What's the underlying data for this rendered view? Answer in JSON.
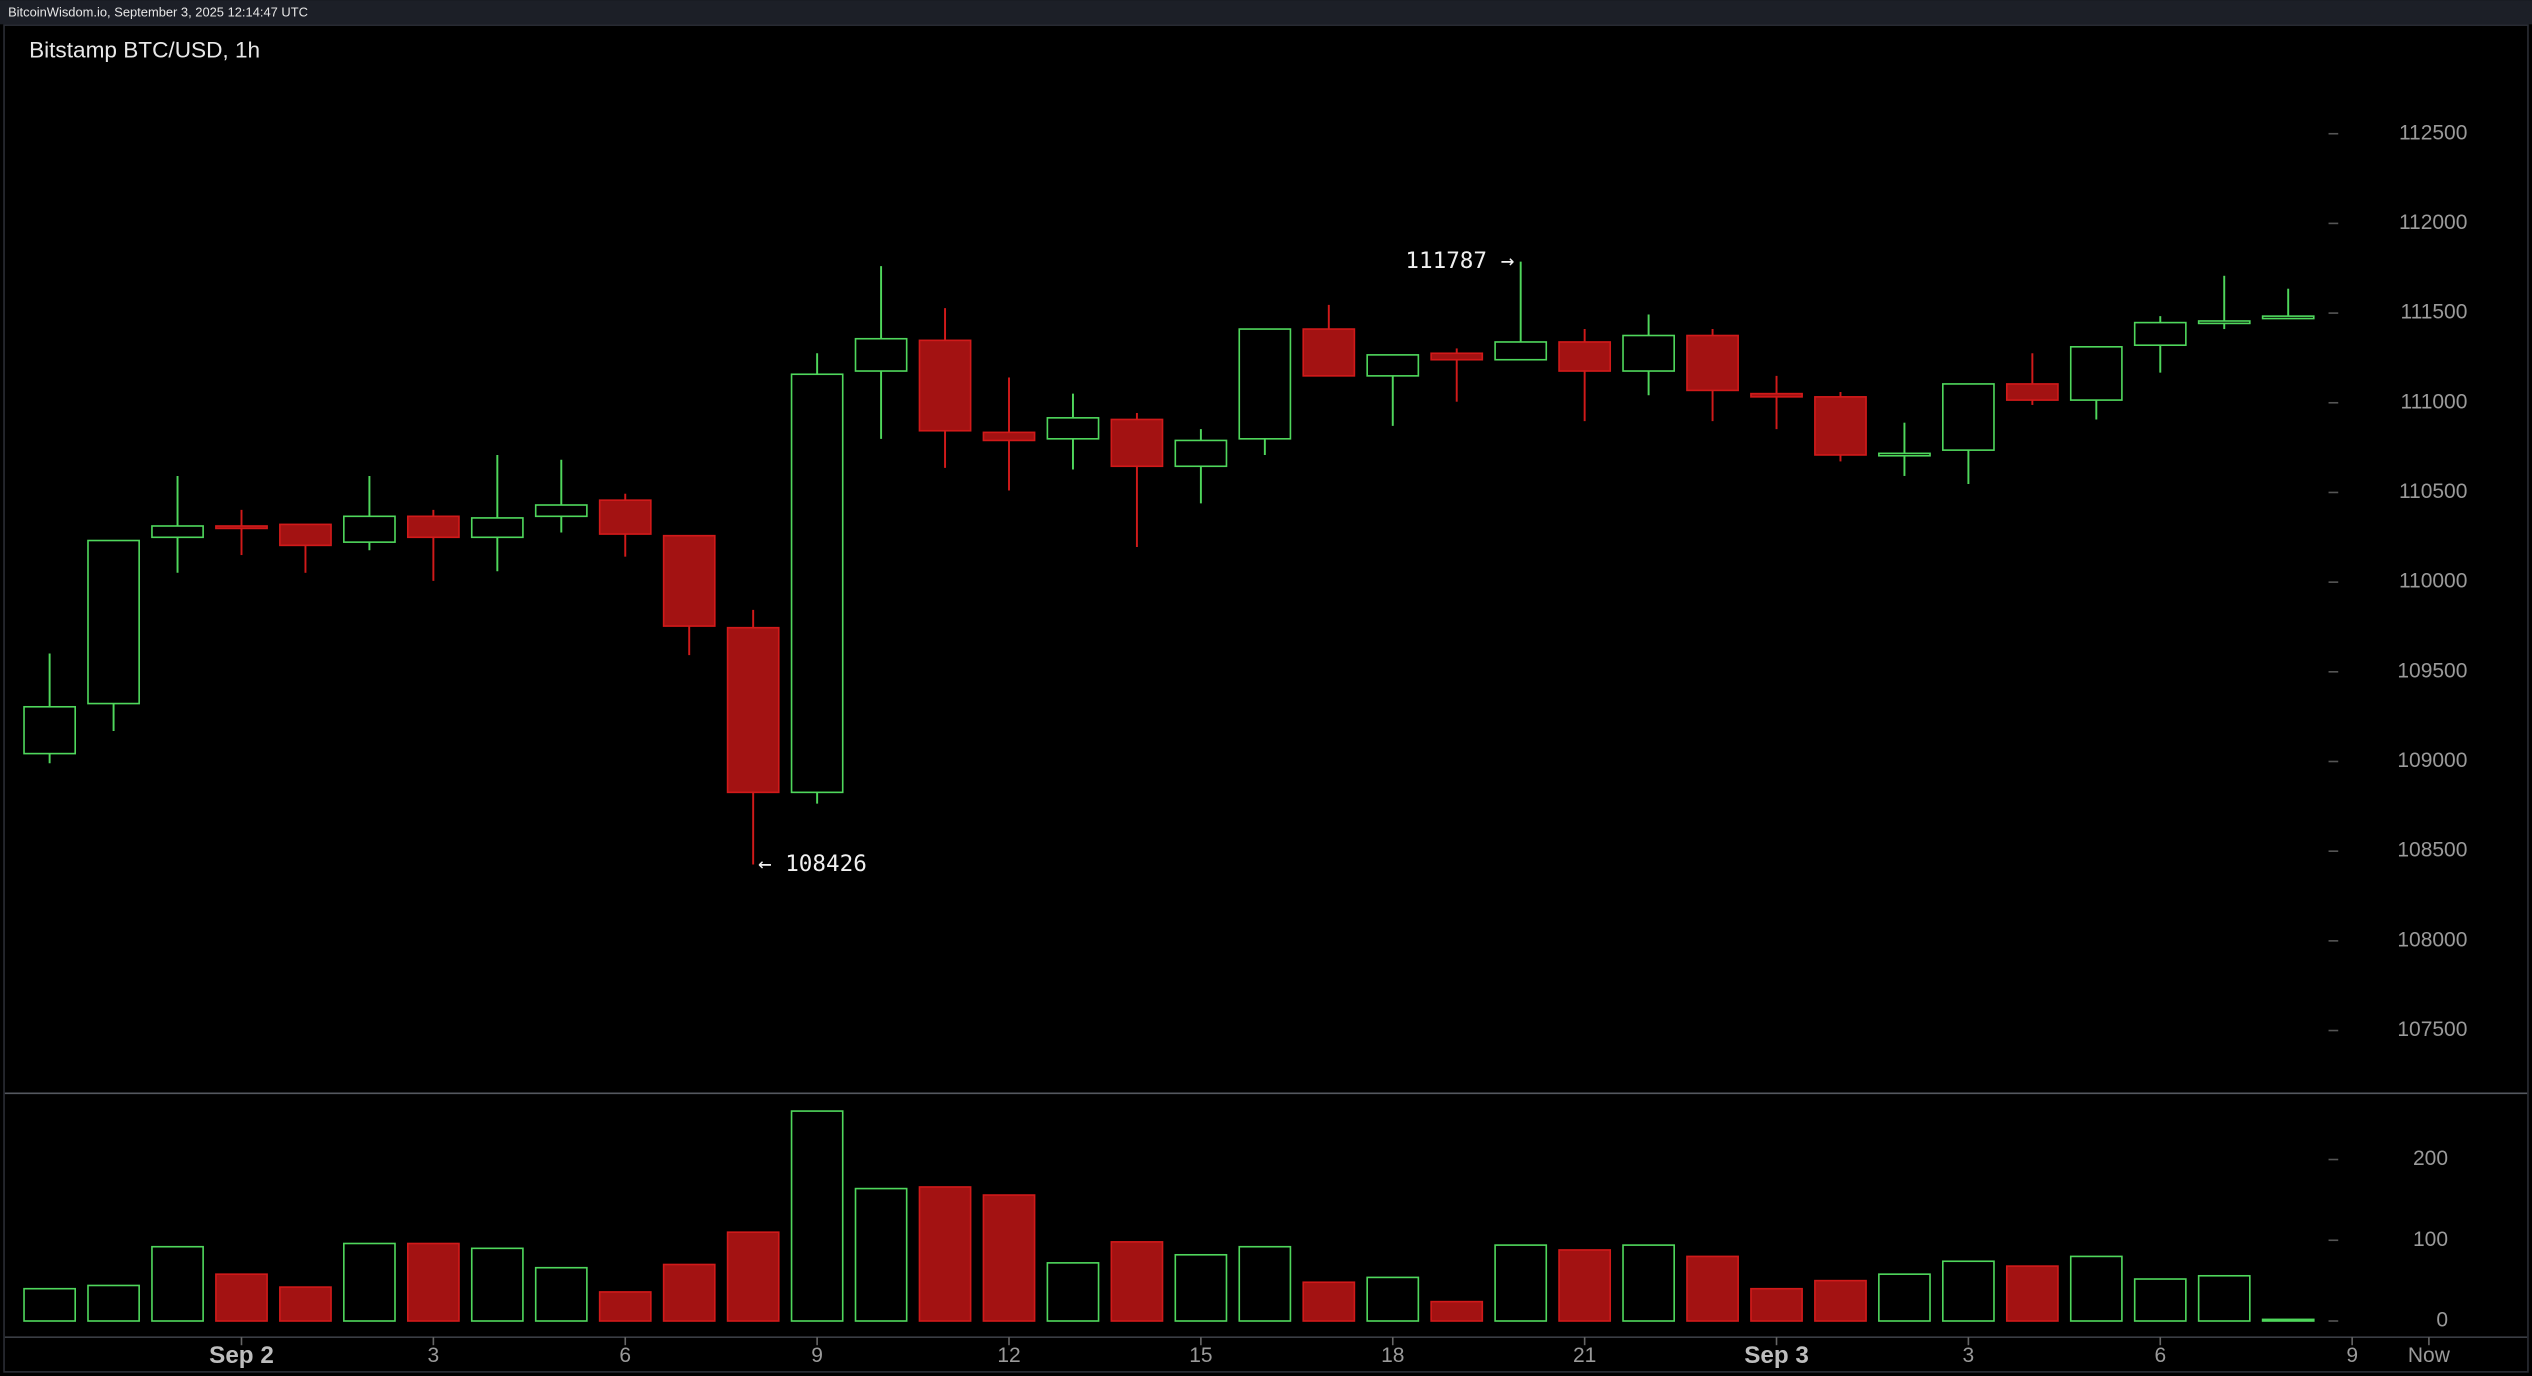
{
  "chart_data": {
    "type": "candlestick",
    "source": "BitcoinWisdom.io, September 3, 2025 12:14:47 UTC",
    "title": "Bitstamp BTC/USD, 1h",
    "open": [
      109044,
      109323,
      110250,
      110313,
      110322,
      110223,
      110367,
      110250,
      110367,
      110457,
      110259,
      109746,
      108828,
      111177,
      111348,
      110835,
      110799,
      110907,
      110646,
      110799,
      111411,
      111150,
      111276,
      111240,
      111339,
      111177,
      111375,
      111051,
      111033,
      110709,
      110736,
      111105,
      111015,
      111321,
      111447,
      111474
    ],
    "high": [
      109602,
      110232,
      110592,
      110403,
      110322,
      110592,
      110403,
      110709,
      110682,
      110493,
      110259,
      109845,
      111276,
      111762,
      111528,
      111141,
      111051,
      110943,
      110853,
      111411,
      111546,
      111267,
      111303,
      111787,
      111411,
      111492,
      111411,
      111150,
      111060,
      110889,
      111105,
      111276,
      111312,
      111483,
      111708,
      111636
    ],
    "low": [
      108990,
      109170,
      110052,
      110151,
      110052,
      110178,
      110007,
      110061,
      110277,
      110142,
      109593,
      108426,
      108765,
      110799,
      110637,
      110511,
      110628,
      110196,
      110439,
      110709,
      111150,
      110871,
      111006,
      111240,
      110898,
      111042,
      110898,
      110853,
      110673,
      110592,
      110547,
      110988,
      110907,
      111168,
      111411,
      111474
    ],
    "close": [
      109305,
      110232,
      110313,
      110304,
      110205,
      110367,
      110250,
      110358,
      110430,
      110268,
      109755,
      108828,
      111159,
      111357,
      110844,
      110790,
      110916,
      110646,
      110790,
      111411,
      111150,
      111267,
      111240,
      111339,
      111177,
      111375,
      111069,
      111033,
      110709,
      110718,
      111105,
      111015,
      111312,
      111447,
      111456,
      111483
    ],
    "volume": [
      40,
      44,
      92,
      58,
      42,
      96,
      96,
      90,
      66,
      36,
      70,
      110,
      260,
      164,
      166,
      156,
      72,
      98,
      82,
      92,
      48,
      54,
      24,
      94,
      88,
      94,
      80,
      40,
      50,
      58,
      74,
      68,
      80,
      52,
      56,
      2
    ],
    "up_color": "#4fd75c",
    "down_color": "#a31212",
    "xlim": [
      -0.7,
      37.6
    ],
    "xticks": [
      {
        "value": 3,
        "label": "Sep 2"
      },
      {
        "value": 6,
        "label": "3"
      },
      {
        "value": 9,
        "label": "6"
      },
      {
        "value": 12,
        "label": "9"
      },
      {
        "value": 15,
        "label": "12"
      },
      {
        "value": 18,
        "label": "15"
      },
      {
        "value": 21,
        "label": "18"
      },
      {
        "value": 24,
        "label": "21"
      },
      {
        "value": 27,
        "label": "Sep 3"
      },
      {
        "value": 30,
        "label": "3"
      },
      {
        "value": 33,
        "label": "6"
      },
      {
        "value": 36,
        "label": "9"
      },
      {
        "value": 37.2,
        "label": "Now"
      }
    ],
    "ylim": [
      107150,
      113110
    ],
    "yticks": [
      107500,
      108000,
      108500,
      109000,
      109500,
      110000,
      110500,
      111000,
      111500,
      112000,
      112500
    ],
    "vol_ylim": [
      -20,
      282
    ],
    "vol_yticks": [
      0,
      100,
      200
    ],
    "annotations": [
      {
        "value": 111787,
        "label": "111787 →",
        "side": "left"
      },
      {
        "value": 108426,
        "label": "← 108426",
        "side": "right"
      }
    ]
  }
}
